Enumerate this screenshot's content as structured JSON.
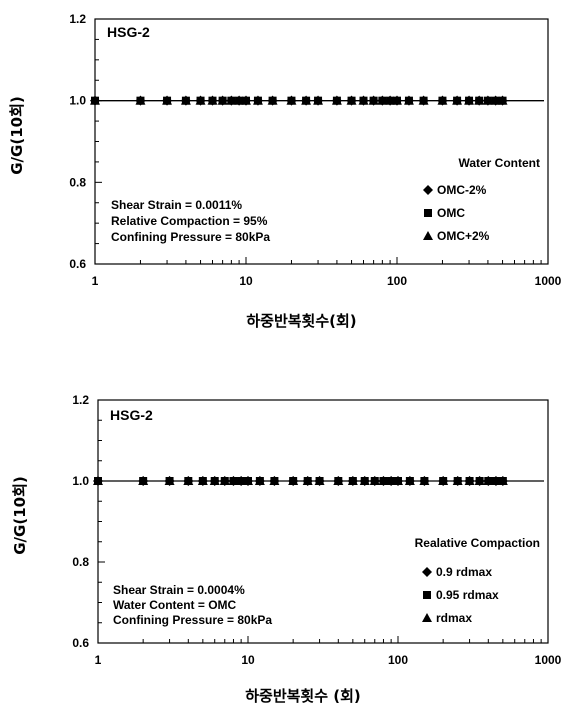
{
  "chart_data": [
    {
      "type": "scatter",
      "panel_label": "HSG-2",
      "xlabel": "하중반복횟수(회)",
      "ylabel": "G/G(10회)",
      "xscale": "log",
      "xlim": [
        1,
        1000
      ],
      "ylim": [
        0.6,
        1.2
      ],
      "x_ticks": [
        "1",
        "10",
        "100",
        "1000"
      ],
      "y_ticks": [
        "0.6",
        "0.8",
        "1.0",
        "1.2"
      ],
      "annotations": [
        "Shear Strain = 0.0011%",
        "Relative Compaction = 95%",
        "Confining Pressure = 80kPa"
      ],
      "legend": {
        "title": "Water Content",
        "placement": "lower-right",
        "entries": [
          {
            "label": "OMC-2%",
            "marker": "diamond"
          },
          {
            "label": "OMC",
            "marker": "square"
          },
          {
            "label": "OMC+2%",
            "marker": "triangle"
          }
        ]
      },
      "x": [
        1,
        2,
        3,
        4,
        5,
        6,
        7,
        8,
        9,
        10,
        12,
        15,
        20,
        25,
        30,
        40,
        50,
        60,
        70,
        80,
        90,
        100,
        120,
        150,
        200,
        250,
        300,
        350,
        400,
        450,
        500
      ],
      "reference_line": 1.0,
      "series": [
        {
          "marker": "diamond",
          "values": [
            1,
            1,
            1,
            1,
            1,
            1,
            1,
            1,
            1,
            1,
            1,
            1,
            1,
            1,
            1,
            1,
            1,
            1,
            1,
            1,
            1,
            1,
            1,
            1,
            1,
            1,
            1,
            1,
            1,
            1,
            1
          ]
        },
        {
          "marker": "square",
          "values": [
            1,
            1,
            1,
            1,
            1,
            1,
            1,
            1,
            1,
            1,
            1,
            1,
            1,
            1,
            1,
            1,
            1,
            1,
            1,
            1,
            1,
            1,
            1,
            1,
            1,
            1,
            1,
            1,
            1,
            1,
            1
          ]
        },
        {
          "marker": "triangle",
          "values": [
            1,
            1,
            1,
            1,
            1,
            1,
            1,
            1,
            1,
            1,
            1,
            1,
            1,
            1,
            1,
            1,
            1,
            1,
            1,
            1,
            1,
            1,
            1,
            1,
            1,
            1,
            1,
            1,
            1,
            1,
            1
          ]
        }
      ]
    },
    {
      "type": "scatter",
      "panel_label": "HSG-2",
      "xlabel": "하중반복횟수 (회)",
      "ylabel": "G/G(10회)",
      "xscale": "log",
      "xlim": [
        1,
        1000
      ],
      "ylim": [
        0.6,
        1.2
      ],
      "x_ticks": [
        "1",
        "10",
        "100",
        "1000"
      ],
      "y_ticks": [
        "0.6",
        "0.8",
        "1.0",
        "1.2"
      ],
      "annotations": [
        "Shear Strain = 0.0004%",
        "Water Content = OMC",
        "Confining Pressure = 80kPa"
      ],
      "legend": {
        "title": "Realative Compaction",
        "placement": "lower-right",
        "entries": [
          {
            "label": "0.9 rdmax",
            "marker": "diamond"
          },
          {
            "label": "0.95 rdmax",
            "marker": "square"
          },
          {
            "label": "rdmax",
            "marker": "triangle"
          }
        ]
      },
      "x": [
        1,
        2,
        3,
        4,
        5,
        6,
        7,
        8,
        9,
        10,
        12,
        15,
        20,
        25,
        30,
        40,
        50,
        60,
        70,
        80,
        90,
        100,
        120,
        150,
        200,
        250,
        300,
        350,
        400,
        450,
        500
      ],
      "reference_line": 1.0,
      "series": [
        {
          "marker": "diamond",
          "values": [
            1,
            1,
            1,
            1,
            1,
            1,
            1,
            1,
            1,
            1,
            1,
            1,
            1,
            1,
            1,
            1,
            1,
            1,
            1,
            1,
            1,
            1,
            1,
            1,
            1,
            1,
            1,
            1,
            1,
            1,
            1
          ]
        },
        {
          "marker": "square",
          "values": [
            1,
            1,
            1,
            1,
            1,
            1,
            1,
            1,
            1,
            1,
            1,
            1,
            1,
            1,
            1,
            1,
            1,
            1,
            1,
            1,
            1,
            1,
            1,
            1,
            1,
            1,
            1,
            1,
            1,
            1,
            1
          ]
        },
        {
          "marker": "triangle",
          "values": [
            1,
            1,
            1,
            1,
            1,
            1,
            1,
            1,
            1,
            1,
            1,
            1,
            1,
            1,
            1,
            1,
            1,
            1,
            1,
            1,
            1,
            1,
            1,
            1,
            1,
            1,
            1,
            1,
            1,
            1,
            1
          ]
        }
      ]
    }
  ]
}
